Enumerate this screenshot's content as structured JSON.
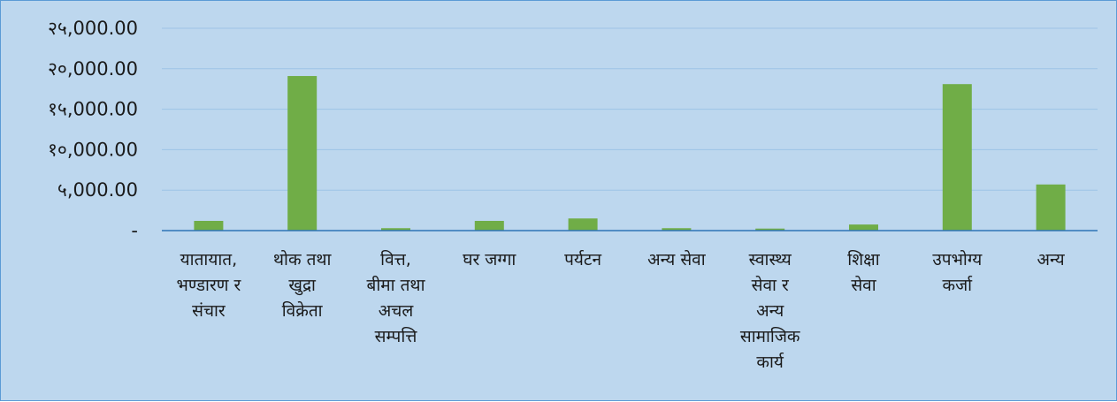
{
  "chart_data": {
    "type": "bar",
    "title": "",
    "xlabel": "",
    "ylabel": "",
    "categories": [
      [
        "यातायात,",
        "भण्डारण र",
        "संचार"
      ],
      [
        "थोक तथा",
        "खुद्रा",
        "विक्रेता"
      ],
      [
        "वित्त,",
        "बीमा तथा",
        "अचल",
        "सम्पत्ति"
      ],
      [
        "घर जग्गा"
      ],
      [
        "पर्यटन"
      ],
      [
        "अन्य सेवा"
      ],
      [
        "स्वास्थ्य",
        "सेवा र",
        "अन्य",
        "सामाजिक",
        "कार्य"
      ],
      [
        "शिक्षा",
        "सेवा"
      ],
      [
        "उपभोग्य",
        "कर्जा"
      ],
      [
        "अन्य"
      ]
    ],
    "values": [
      1200,
      19100,
      300,
      1200,
      1500,
      300,
      250,
      750,
      18100,
      5700
    ],
    "ylim": [
      0,
      25000
    ],
    "yticks": [
      0,
      5000,
      10000,
      15000,
      20000,
      25000
    ],
    "ytick_labels": [
      "-",
      "५,000.00",
      "१०,000.00",
      "१५,000.00",
      "२०,000.00",
      "२५,000.00"
    ],
    "grid": true,
    "legend": "none",
    "colors": {
      "background": "#bdd7ee",
      "bar": "#70ad47",
      "grid": "#9dc3e6",
      "axis": "#2e75b6",
      "border": "#5b9bd5",
      "text": "#1a1a1a"
    }
  }
}
